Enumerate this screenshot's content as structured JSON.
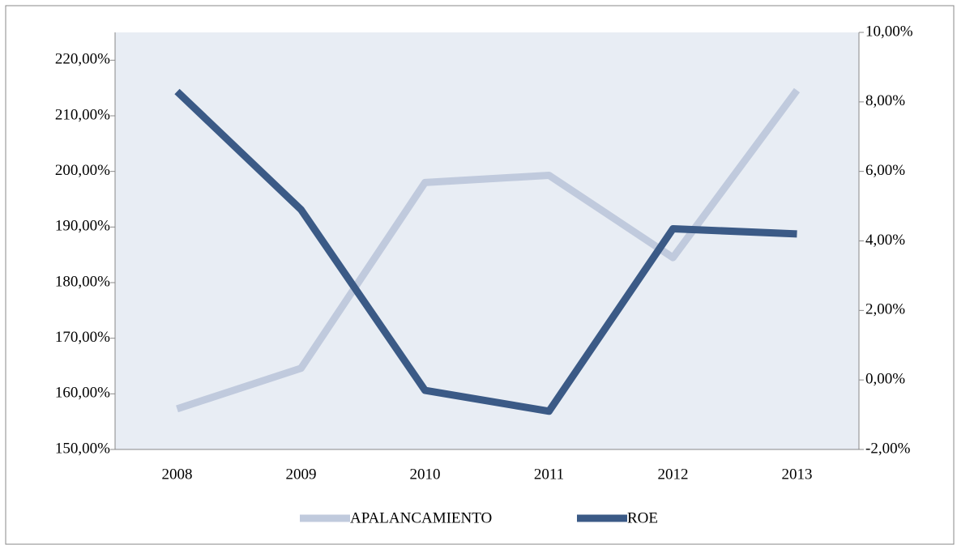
{
  "chart_data": {
    "type": "line",
    "categories": [
      "2008",
      "2009",
      "2010",
      "2011",
      "2012",
      "2013"
    ],
    "series": [
      {
        "name": "APALANCAMIENTO",
        "color": "#c0cadd",
        "axis": "y",
        "values": [
          157.3,
          164.6,
          198.0,
          199.3,
          184.5,
          214.6
        ]
      },
      {
        "name": "ROE",
        "color": "#3b5a86",
        "axis": "y2",
        "values": [
          8.3,
          4.9,
          -0.3,
          -0.9,
          4.35,
          4.2
        ]
      }
    ],
    "ylim": [
      150,
      225
    ],
    "yticks": [
      {
        "value": 150,
        "label": "150,00%"
      },
      {
        "value": 160,
        "label": "160,00%"
      },
      {
        "value": 170,
        "label": "170,00%"
      },
      {
        "value": 180,
        "label": "180,00%"
      },
      {
        "value": 190,
        "label": "190,00%"
      },
      {
        "value": 200,
        "label": "200,00%"
      },
      {
        "value": 210,
        "label": "210,00%"
      },
      {
        "value": 220,
        "label": "220,00%"
      }
    ],
    "y2lim": [
      -2,
      10
    ],
    "y2ticks": [
      {
        "value": -2,
        "label": "-2,00%"
      },
      {
        "value": 0,
        "label": "0,00%"
      },
      {
        "value": 2,
        "label": "2,00%"
      },
      {
        "value": 4,
        "label": "4,00%"
      },
      {
        "value": 6,
        "label": "6,00%"
      },
      {
        "value": 8,
        "label": "8,00%"
      },
      {
        "value": 10,
        "label": "10,00%"
      }
    ],
    "legend": "bottom"
  }
}
